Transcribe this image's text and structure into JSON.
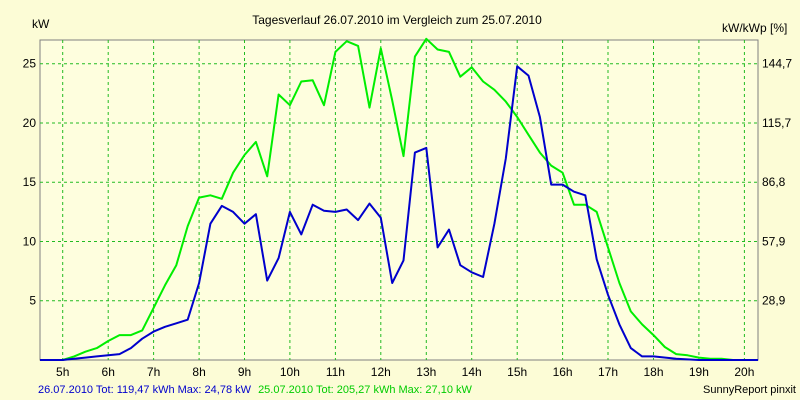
{
  "chart_data": {
    "type": "line",
    "title": "Tagesverlauf 26.07.2010 im Vergleich zum 25.07.2010",
    "ylabel_left": "kW",
    "ylabel_right": "kW/kWp [%]",
    "x_ticks": [
      "5h",
      "6h",
      "7h",
      "8h",
      "9h",
      "10h",
      "11h",
      "12h",
      "13h",
      "14h",
      "15h",
      "16h",
      "17h",
      "18h",
      "19h",
      "20h"
    ],
    "x_range_hours": [
      4.5,
      20.3
    ],
    "y_range": [
      0,
      27
    ],
    "y_ticks_left": [
      5,
      10,
      15,
      20,
      25
    ],
    "y_ticks_right": [
      {
        "at": 5,
        "label": "28,9"
      },
      {
        "at": 10,
        "label": "57,9"
      },
      {
        "at": 15,
        "label": "86,8"
      },
      {
        "at": 20,
        "label": "115,7"
      },
      {
        "at": 25,
        "label": "144,7"
      }
    ],
    "grid": true,
    "series": [
      {
        "name": "26.07.2010",
        "color": "#0000cc",
        "x": [
          4.5,
          5.0,
          5.25,
          5.5,
          5.75,
          6.0,
          6.25,
          6.5,
          6.75,
          7.0,
          7.25,
          7.5,
          7.75,
          8.0,
          8.25,
          8.5,
          8.75,
          9.0,
          9.25,
          9.5,
          9.75,
          10.0,
          10.25,
          10.5,
          10.75,
          11.0,
          11.25,
          11.5,
          11.75,
          12.0,
          12.25,
          12.5,
          12.75,
          13.0,
          13.25,
          13.5,
          13.75,
          14.0,
          14.25,
          14.5,
          14.75,
          15.0,
          15.25,
          15.5,
          15.75,
          16.0,
          16.25,
          16.5,
          16.75,
          17.0,
          17.25,
          17.5,
          17.75,
          18.0,
          18.5,
          19.0,
          19.5,
          20.0,
          20.3
        ],
        "values": [
          0,
          0,
          0.1,
          0.2,
          0.3,
          0.4,
          0.5,
          1.0,
          1.8,
          2.4,
          2.8,
          3.1,
          3.4,
          6.5,
          11.5,
          13.0,
          12.5,
          11.5,
          12.3,
          6.7,
          8.6,
          12.5,
          10.6,
          13.1,
          12.6,
          12.5,
          12.7,
          11.8,
          13.2,
          12.0,
          6.5,
          8.4,
          17.5,
          17.9,
          9.5,
          11.0,
          8.0,
          7.4,
          7.0,
          11.5,
          17.0,
          24.78,
          24.0,
          20.5,
          14.8,
          14.8,
          14.2,
          13.9,
          8.5,
          5.5,
          3.0,
          1.0,
          0.3,
          0.3,
          0.1,
          0,
          0,
          0,
          0
        ]
      },
      {
        "name": "25.07.2010",
        "color": "#00ee00",
        "x": [
          4.5,
          5.0,
          5.25,
          5.5,
          5.75,
          6.0,
          6.25,
          6.5,
          6.75,
          7.0,
          7.25,
          7.5,
          7.75,
          8.0,
          8.25,
          8.5,
          8.75,
          9.0,
          9.25,
          9.5,
          9.75,
          10.0,
          10.25,
          10.5,
          10.75,
          11.0,
          11.25,
          11.5,
          11.75,
          12.0,
          12.25,
          12.5,
          12.75,
          13.0,
          13.25,
          13.5,
          13.75,
          14.0,
          14.25,
          14.5,
          14.75,
          15.0,
          15.25,
          15.5,
          15.75,
          16.0,
          16.25,
          16.5,
          16.75,
          17.0,
          17.25,
          17.5,
          17.75,
          18.0,
          18.25,
          18.5,
          18.75,
          19.0,
          19.25,
          19.5,
          19.75,
          20.0,
          20.3
        ],
        "values": [
          0,
          0,
          0.3,
          0.7,
          1.0,
          1.6,
          2.1,
          2.1,
          2.5,
          4.4,
          6.3,
          8.0,
          11.3,
          13.7,
          13.9,
          13.6,
          15.8,
          17.3,
          18.4,
          15.5,
          22.4,
          21.5,
          23.5,
          23.6,
          21.5,
          26.0,
          26.9,
          26.5,
          21.3,
          26.3,
          21.9,
          17.2,
          25.6,
          27.1,
          26.2,
          26.0,
          23.9,
          24.7,
          23.5,
          22.8,
          21.8,
          20.5,
          19.0,
          17.5,
          16.4,
          15.8,
          13.1,
          13.1,
          12.5,
          9.5,
          6.5,
          4.1,
          3.0,
          2.1,
          1.1,
          0.5,
          0.4,
          0.2,
          0.1,
          0.1,
          0,
          0,
          0
        ]
      }
    ]
  },
  "footer": {
    "series1_text": "26.07.2010 Tot: 119,47 kWh Max: 24,78 kW",
    "series2_text": "25.07.2010 Tot: 205,27 kWh Max: 27,10 kW",
    "credit": "SunnyReport pinxit"
  }
}
